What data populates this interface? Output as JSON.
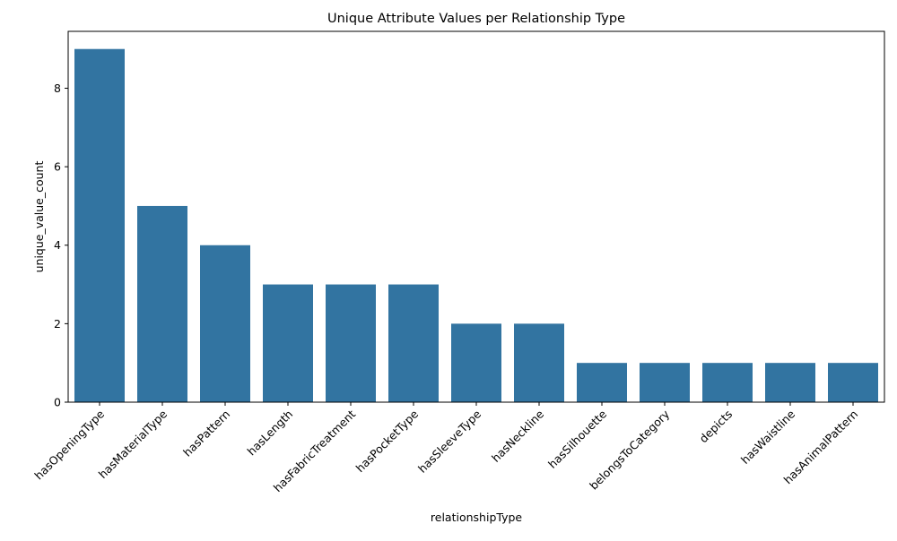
{
  "chart_data": {
    "type": "bar",
    "title": "Unique Attribute Values per Relationship Type",
    "xlabel": "relationshipType",
    "ylabel": "unique_value_count",
    "categories": [
      "hasOpeningType",
      "hasMaterialType",
      "hasPattern",
      "hasLength",
      "hasFabricTreatment",
      "hasPocketType",
      "hasSleeveType",
      "hasNeckline",
      "hasSilhouette",
      "belongsToCategory",
      "depicts",
      "hasWaistline",
      "hasAnimalPattern"
    ],
    "values": [
      9,
      5,
      4,
      3,
      3,
      3,
      2,
      2,
      1,
      1,
      1,
      1,
      1
    ],
    "ylim": [
      0,
      9.45
    ],
    "yticks": [
      0,
      2,
      4,
      6,
      8
    ],
    "grid": false,
    "bar_color": "#3274a1"
  }
}
